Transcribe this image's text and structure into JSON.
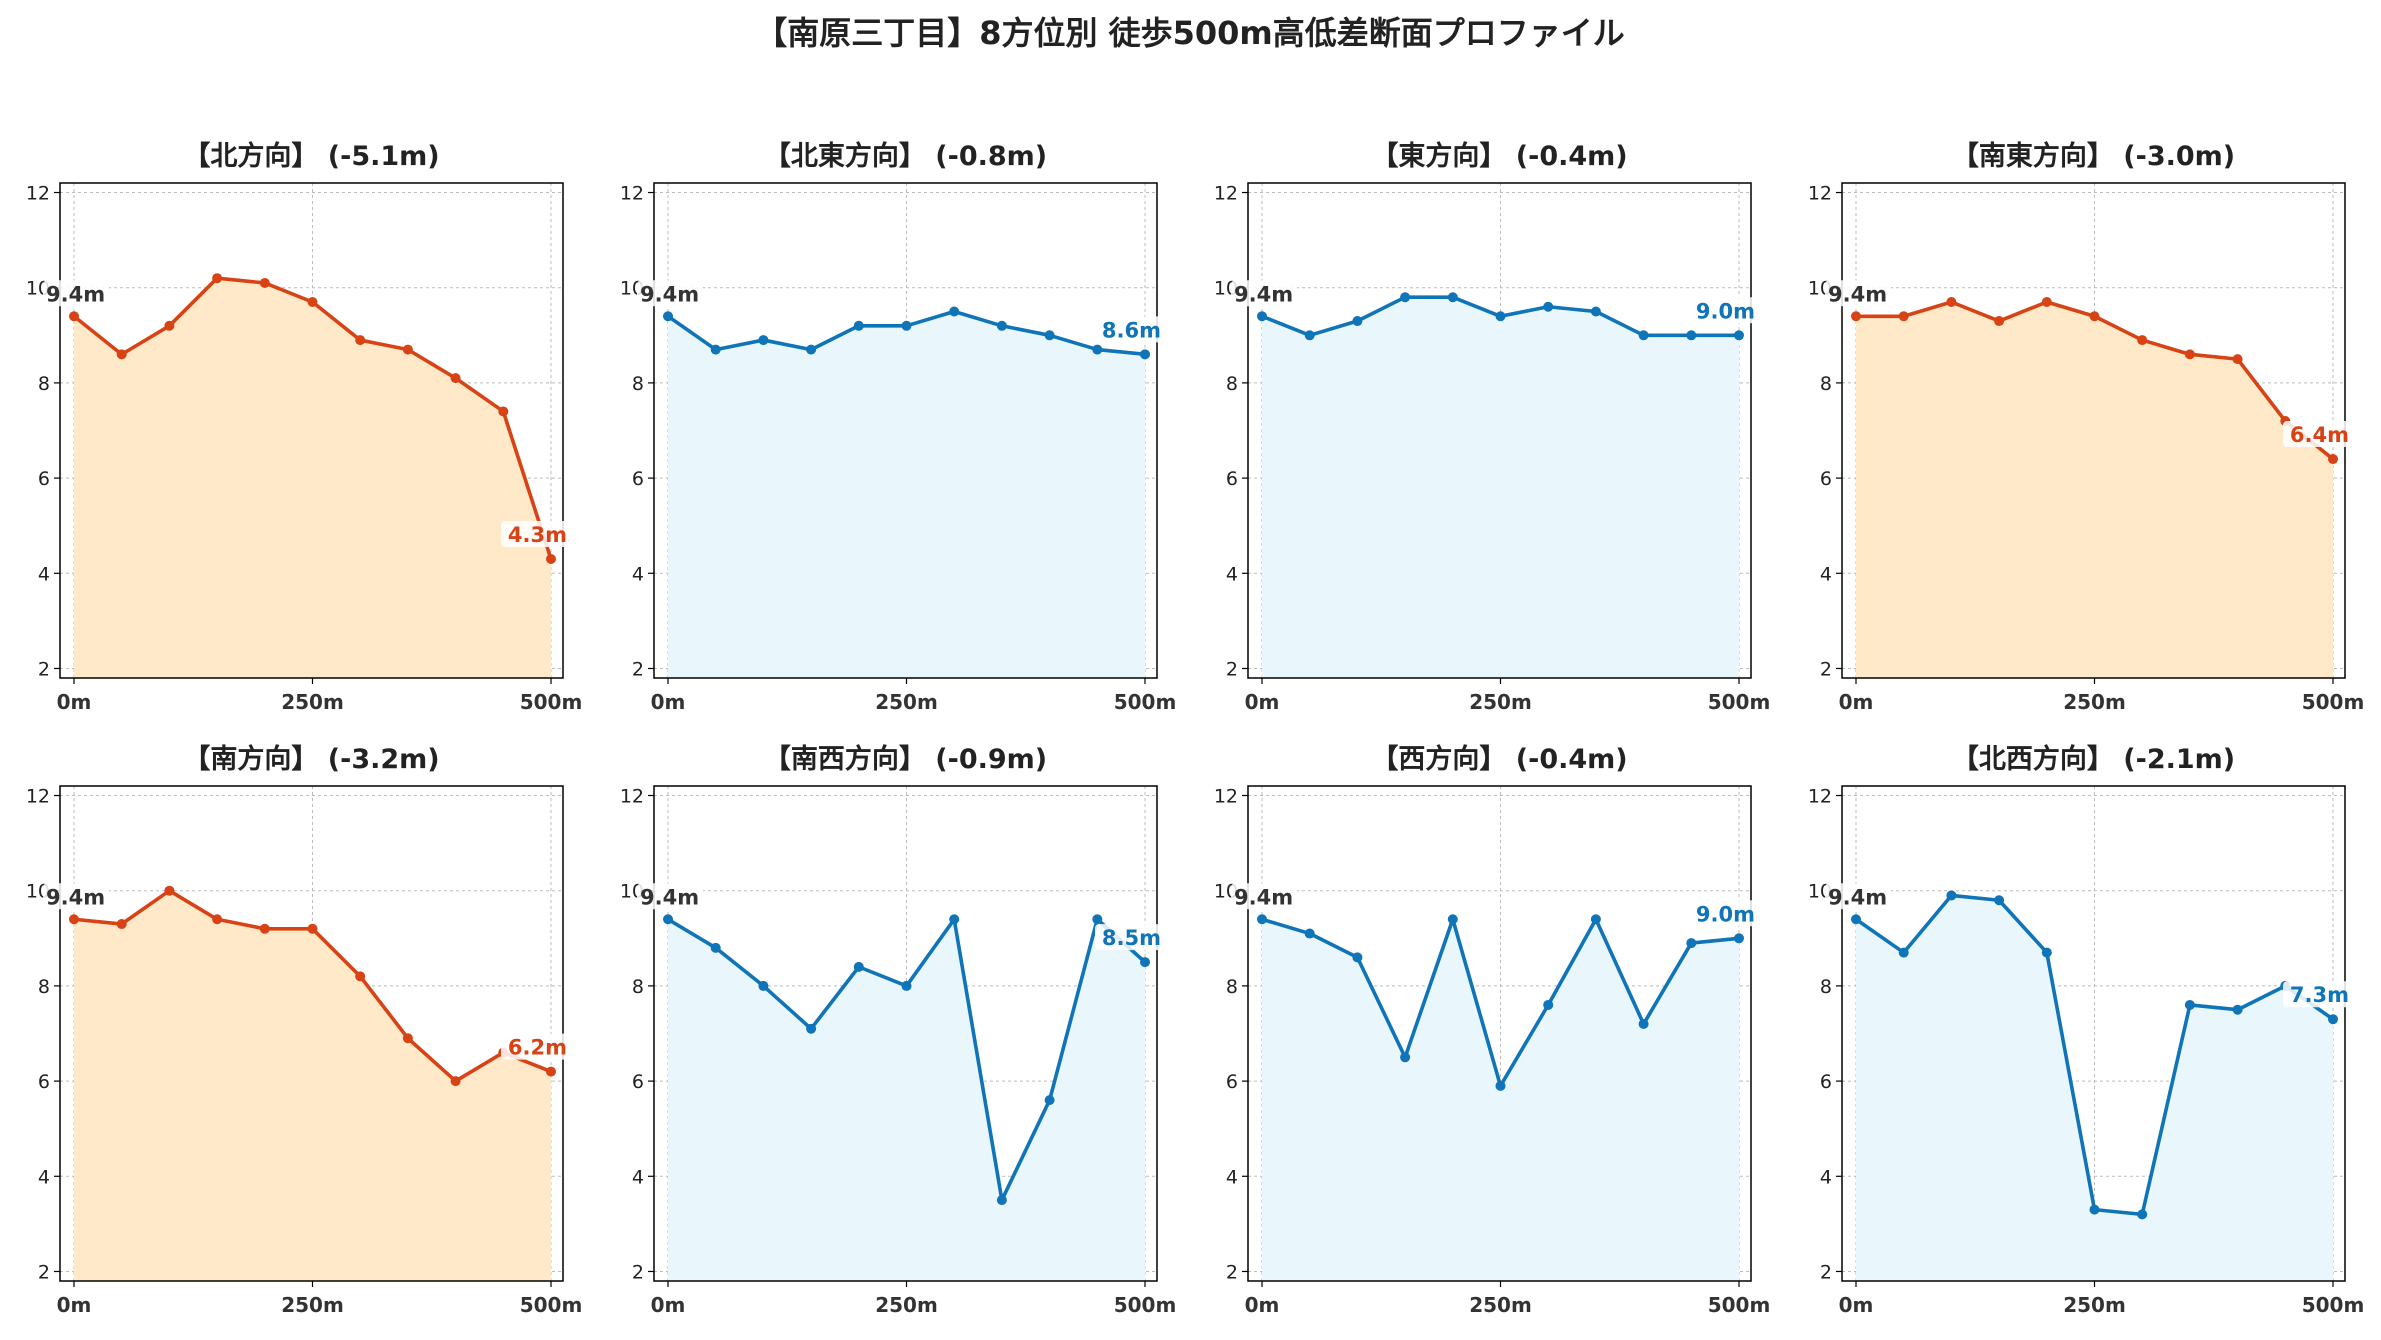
{
  "title": "【南原三丁目】8方位別 徒歩500m高低差断面プロファイル",
  "colors": {
    "down_line": "#d84315",
    "down_fill": "#ffe9c9",
    "flat_line": "#0f74b8",
    "flat_fill": "#e9f6fc",
    "grid": "#bbbbbb",
    "axis": "#000000"
  },
  "chart_data": [
    {
      "type": "line",
      "title": "【北方向】 (-5.1m)",
      "trend": "down",
      "x": [
        0,
        50,
        100,
        150,
        200,
        250,
        300,
        350,
        400,
        450,
        500
      ],
      "values": [
        9.4,
        8.6,
        9.2,
        10.2,
        10.1,
        9.7,
        8.9,
        8.7,
        8.1,
        7.4,
        4.3
      ],
      "start_label": "9.4m",
      "end_label": "4.3m",
      "xticks": [
        "0m",
        "250m",
        "500m"
      ],
      "yticks": [
        "2",
        "4",
        "6",
        "8",
        "10",
        "12"
      ],
      "ylim": [
        1.8,
        12.2
      ],
      "grid": true
    },
    {
      "type": "line",
      "title": "【北東方向】 (-0.8m)",
      "trend": "flat",
      "x": [
        0,
        50,
        100,
        150,
        200,
        250,
        300,
        350,
        400,
        450,
        500
      ],
      "values": [
        9.4,
        8.7,
        8.9,
        8.7,
        9.2,
        9.2,
        9.5,
        9.2,
        9.0,
        8.7,
        8.6
      ],
      "start_label": "9.4m",
      "end_label": "8.6m",
      "xticks": [
        "0m",
        "250m",
        "500m"
      ],
      "yticks": [
        "2",
        "4",
        "6",
        "8",
        "10",
        "12"
      ],
      "ylim": [
        1.8,
        12.2
      ],
      "grid": true
    },
    {
      "type": "line",
      "title": "【東方向】 (-0.4m)",
      "trend": "flat",
      "x": [
        0,
        50,
        100,
        150,
        200,
        250,
        300,
        350,
        400,
        450,
        500
      ],
      "values": [
        9.4,
        9.0,
        9.3,
        9.8,
        9.8,
        9.4,
        9.6,
        9.5,
        9.0,
        9.0,
        9.0
      ],
      "start_label": "9.4m",
      "end_label": "9.0m",
      "xticks": [
        "0m",
        "250m",
        "500m"
      ],
      "yticks": [
        "2",
        "4",
        "6",
        "8",
        "10",
        "12"
      ],
      "ylim": [
        1.8,
        12.2
      ],
      "grid": true
    },
    {
      "type": "line",
      "title": "【南東方向】 (-3.0m)",
      "trend": "down",
      "x": [
        0,
        50,
        100,
        150,
        200,
        250,
        300,
        350,
        400,
        450,
        500
      ],
      "values": [
        9.4,
        9.4,
        9.7,
        9.3,
        9.7,
        9.4,
        8.9,
        8.6,
        8.5,
        7.2,
        6.4
      ],
      "start_label": "9.4m",
      "end_label": "6.4m",
      "xticks": [
        "0m",
        "250m",
        "500m"
      ],
      "yticks": [
        "2",
        "4",
        "6",
        "8",
        "10",
        "12"
      ],
      "ylim": [
        1.8,
        12.2
      ],
      "grid": true
    },
    {
      "type": "line",
      "title": "【南方向】 (-3.2m)",
      "trend": "down",
      "x": [
        0,
        50,
        100,
        150,
        200,
        250,
        300,
        350,
        400,
        450,
        500
      ],
      "values": [
        9.4,
        9.3,
        10.0,
        9.4,
        9.2,
        9.2,
        8.2,
        6.9,
        6.0,
        6.6,
        6.2
      ],
      "start_label": "9.4m",
      "end_label": "6.2m",
      "xticks": [
        "0m",
        "250m",
        "500m"
      ],
      "yticks": [
        "2",
        "4",
        "6",
        "8",
        "10",
        "12"
      ],
      "ylim": [
        1.8,
        12.2
      ],
      "grid": true
    },
    {
      "type": "line",
      "title": "【南西方向】 (-0.9m)",
      "trend": "flat",
      "x": [
        0,
        50,
        100,
        150,
        200,
        250,
        300,
        350,
        400,
        450,
        500
      ],
      "values": [
        9.4,
        8.8,
        8.0,
        7.1,
        8.4,
        8.0,
        9.4,
        3.5,
        5.6,
        9.4,
        8.5
      ],
      "start_label": "9.4m",
      "end_label": "8.5m",
      "xticks": [
        "0m",
        "250m",
        "500m"
      ],
      "yticks": [
        "2",
        "4",
        "6",
        "8",
        "10",
        "12"
      ],
      "ylim": [
        1.8,
        12.2
      ],
      "grid": true
    },
    {
      "type": "line",
      "title": "【西方向】 (-0.4m)",
      "trend": "flat",
      "x": [
        0,
        50,
        100,
        150,
        200,
        250,
        300,
        350,
        400,
        450,
        500
      ],
      "values": [
        9.4,
        9.1,
        8.6,
        6.5,
        9.4,
        5.9,
        7.6,
        9.4,
        7.2,
        8.9,
        9.0
      ],
      "start_label": "9.4m",
      "end_label": "9.0m",
      "xticks": [
        "0m",
        "250m",
        "500m"
      ],
      "yticks": [
        "2",
        "4",
        "6",
        "8",
        "10",
        "12"
      ],
      "ylim": [
        1.8,
        12.2
      ],
      "grid": true
    },
    {
      "type": "line",
      "title": "【北西方向】 (-2.1m)",
      "trend": "flat",
      "x": [
        0,
        50,
        100,
        150,
        200,
        250,
        300,
        350,
        400,
        450,
        500
      ],
      "values": [
        9.4,
        8.7,
        9.9,
        9.8,
        8.7,
        3.3,
        3.2,
        7.6,
        7.5,
        8.0,
        7.3
      ],
      "start_label": "9.4m",
      "end_label": "7.3m",
      "xticks": [
        "0m",
        "250m",
        "500m"
      ],
      "yticks": [
        "2",
        "4",
        "6",
        "8",
        "10",
        "12"
      ],
      "ylim": [
        1.8,
        12.2
      ],
      "grid": true
    }
  ]
}
